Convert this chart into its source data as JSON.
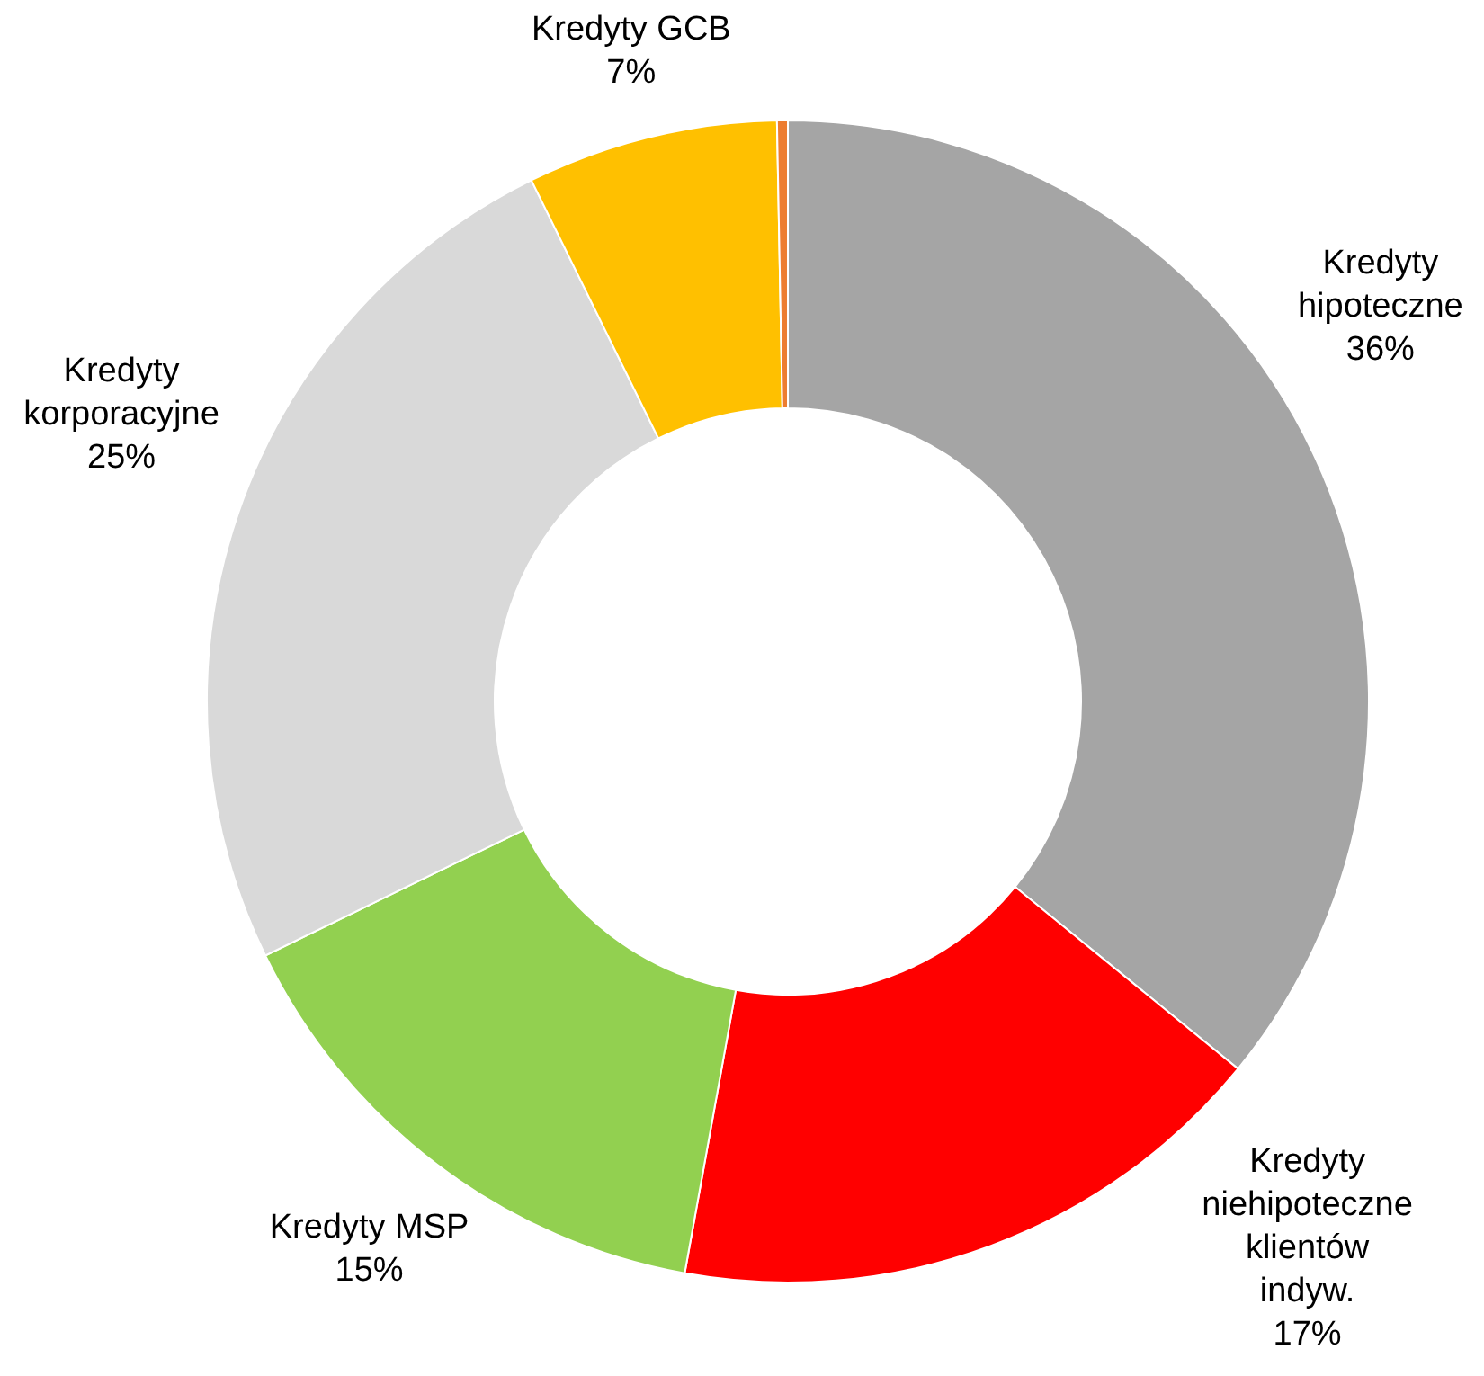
{
  "chart_data": {
    "type": "donut",
    "categories": [
      "Kredyty hipoteczne",
      "Kredyty niehipoteczne klientów indyw.",
      "Kredyty MSP",
      "Kredyty korporacyjne",
      "Kredyty GCB",
      null
    ],
    "values": [
      36,
      17,
      15,
      25,
      7,
      0.3
    ],
    "value_labels": [
      "36%",
      "17%",
      "15%",
      "25%",
      "7%",
      null
    ],
    "colors": [
      "#a5a5a5",
      "#ff0000",
      "#92d050",
      "#d9d9d9",
      "#ffc000",
      "#ed7d31"
    ]
  }
}
